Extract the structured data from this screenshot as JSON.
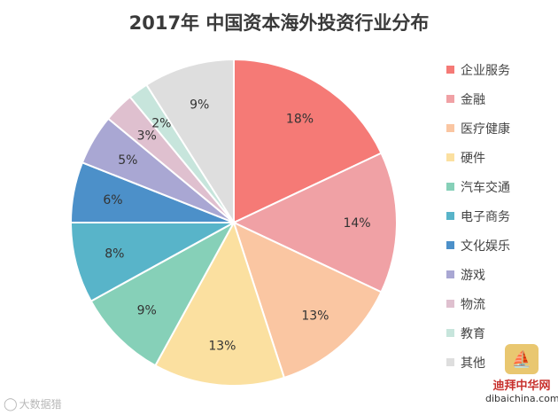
{
  "chart_data": {
    "type": "pie",
    "title": "2017年 中国资本海外投资行业分布",
    "legend_position": "right",
    "slices": [
      {
        "name": "企业服务",
        "value": 18,
        "label": "18%",
        "color": "#f57a76"
      },
      {
        "name": "金融",
        "value": 14,
        "label": "14%",
        "color": "#f0a1a5"
      },
      {
        "name": "医疗健康",
        "value": 13,
        "label": "13%",
        "color": "#fac6a2"
      },
      {
        "name": "硬件",
        "value": 13,
        "label": "13%",
        "color": "#fbe0a0"
      },
      {
        "name": "汽车交通",
        "value": 9,
        "label": "9%",
        "color": "#86d0b8"
      },
      {
        "name": "电子商务",
        "value": 8,
        "label": "8%",
        "color": "#58b4c9"
      },
      {
        "name": "文化娱乐",
        "value": 6,
        "label": "6%",
        "color": "#4c90c9"
      },
      {
        "name": "游戏",
        "value": 5,
        "label": "5%",
        "color": "#a9a7d3"
      },
      {
        "name": "物流",
        "value": 3,
        "label": "3%",
        "color": "#dfc0cf"
      },
      {
        "name": "教育",
        "value": 2,
        "label": "2%",
        "color": "#c7e5dc"
      },
      {
        "name": "其他",
        "value": 9,
        "label": "9%",
        "color": "#dedede"
      }
    ]
  },
  "watermark": {
    "left_text": "大数据猎",
    "left_icon": "weibo-icon",
    "right_logo_text": "迪拜中华网",
    "right_url": "dibaichina.com"
  }
}
